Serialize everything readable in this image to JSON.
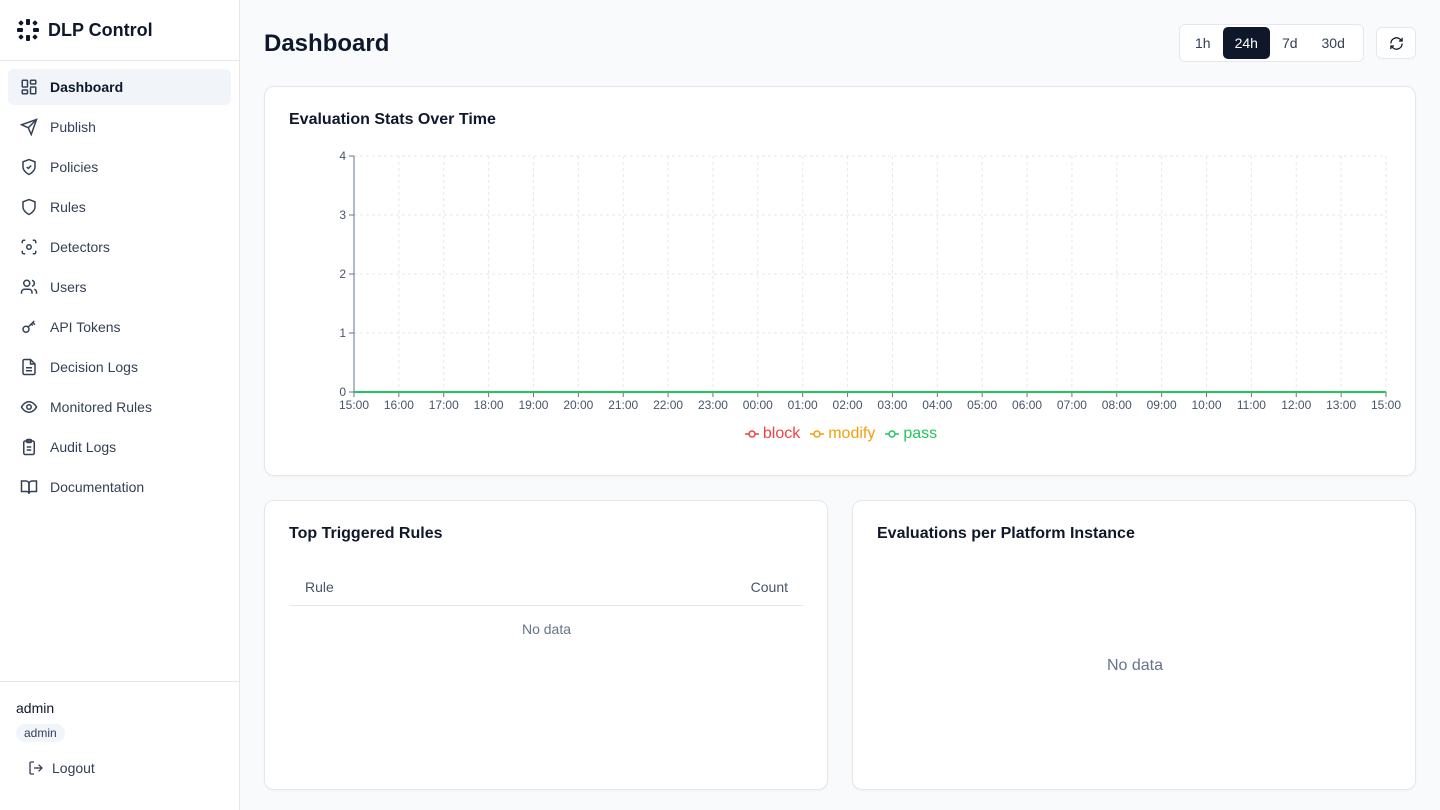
{
  "app": {
    "name": "DLP Control"
  },
  "sidebar": {
    "items": [
      {
        "label": "Dashboard",
        "icon": "dashboard-icon",
        "active": true
      },
      {
        "label": "Publish",
        "icon": "send-icon"
      },
      {
        "label": "Policies",
        "icon": "shield-check-icon"
      },
      {
        "label": "Rules",
        "icon": "shield-icon"
      },
      {
        "label": "Detectors",
        "icon": "scan-icon"
      },
      {
        "label": "Users",
        "icon": "users-icon"
      },
      {
        "label": "API Tokens",
        "icon": "key-icon"
      },
      {
        "label": "Decision Logs",
        "icon": "file-text-icon"
      },
      {
        "label": "Monitored Rules",
        "icon": "eye-icon"
      },
      {
        "label": "Audit Logs",
        "icon": "clipboard-icon"
      },
      {
        "label": "Documentation",
        "icon": "book-icon"
      }
    ]
  },
  "user": {
    "name": "admin",
    "role": "admin",
    "logout_label": "Logout"
  },
  "header": {
    "title": "Dashboard",
    "ranges": [
      {
        "label": "1h"
      },
      {
        "label": "24h",
        "active": true
      },
      {
        "label": "7d"
      },
      {
        "label": "30d"
      }
    ]
  },
  "stats_card": {
    "title": "Evaluation Stats Over Time"
  },
  "chart_data": {
    "type": "line",
    "title": "Evaluation Stats Over Time",
    "x": [
      "15:00",
      "16:00",
      "17:00",
      "18:00",
      "19:00",
      "20:00",
      "21:00",
      "22:00",
      "23:00",
      "00:00",
      "01:00",
      "02:00",
      "03:00",
      "04:00",
      "05:00",
      "06:00",
      "07:00",
      "08:00",
      "09:00",
      "10:00",
      "11:00",
      "12:00",
      "13:00",
      "15:00"
    ],
    "series": [
      {
        "name": "block",
        "color": "#ef4444",
        "values": [
          0,
          0,
          0,
          0,
          0,
          0,
          0,
          0,
          0,
          0,
          0,
          0,
          0,
          0,
          0,
          0,
          0,
          0,
          0,
          0,
          0,
          0,
          0,
          0
        ]
      },
      {
        "name": "modify",
        "color": "#f59e0b",
        "values": [
          0,
          0,
          0,
          0,
          0,
          0,
          0,
          0,
          0,
          0,
          0,
          0,
          0,
          0,
          0,
          0,
          0,
          0,
          0,
          0,
          0,
          0,
          0,
          0
        ]
      },
      {
        "name": "pass",
        "color": "#22c55e",
        "values": [
          0,
          0,
          0,
          0,
          0,
          0,
          0,
          0,
          0,
          0,
          0,
          0,
          0,
          0,
          0,
          0,
          0,
          0,
          0,
          0,
          0,
          0,
          0,
          0
        ]
      }
    ],
    "yticks": [
      0,
      1,
      2,
      3,
      4
    ],
    "ylim": [
      0,
      4
    ],
    "grid": true,
    "legend": "bottom-center"
  },
  "rules_card": {
    "title": "Top Triggered Rules",
    "columns": [
      "Rule",
      "Count"
    ],
    "empty_text": "No data"
  },
  "platform_card": {
    "title": "Evaluations per Platform Instance",
    "empty_text": "No data"
  }
}
